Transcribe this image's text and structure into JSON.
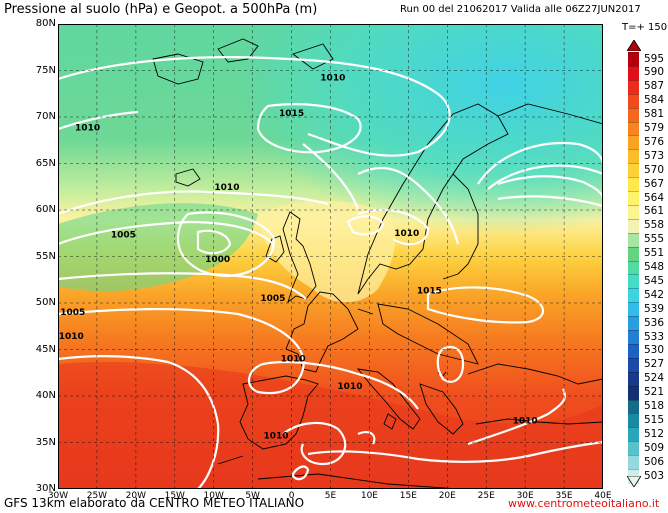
{
  "header": {
    "title": "Pressione al suolo (hPa) e Geopot. a 500hPa (m)",
    "run": "Run 00 del 21062017  Valida alle 06Z27JUN2017",
    "timestep": "T=+ 150"
  },
  "footer": {
    "source": "GFS 13km elaborato da CENTRO METEO ITALIANO",
    "website": "www.centrometeoitaliano.it"
  },
  "axes": {
    "lat_labels": [
      "80N",
      "75N",
      "70N",
      "65N",
      "60N",
      "55N",
      "50N",
      "45N",
      "40N",
      "35N",
      "30N"
    ],
    "lon_labels": [
      "30W",
      "25W",
      "20W",
      "15W",
      "10W",
      "5W",
      "0",
      "5E",
      "10E",
      "15E",
      "20E",
      "25E",
      "30E",
      "35E",
      "40E"
    ],
    "lat_range": [
      30,
      80
    ],
    "lon_range": [
      -30,
      40
    ]
  },
  "isobars": [
    {
      "label": "1010",
      "lon": 5.3,
      "lat": 74.2
    },
    {
      "label": "1010",
      "lon": -26.2,
      "lat": 68.8
    },
    {
      "label": "1015",
      "lon": 0,
      "lat": 70.4
    },
    {
      "label": "1010",
      "lon": -8.3,
      "lat": 62.4
    },
    {
      "label": "1005",
      "lon": -21.6,
      "lat": 57.3
    },
    {
      "label": "1000",
      "lon": -9.5,
      "lat": 54.7
    },
    {
      "label": "1010",
      "lon": 14.8,
      "lat": 57.5
    },
    {
      "label": "1005",
      "lon": -2.4,
      "lat": 50.5
    },
    {
      "label": "1005",
      "lon": -28.1,
      "lat": 49.0
    },
    {
      "label": "1015",
      "lon": 17.7,
      "lat": 51.3
    },
    {
      "label": "1010",
      "lon": -28.3,
      "lat": 46.4
    },
    {
      "label": "1010",
      "lon": 0.2,
      "lat": 44.0
    },
    {
      "label": "1010",
      "lon": 7.5,
      "lat": 41.0
    },
    {
      "label": "1010",
      "lon": -2.0,
      "lat": 35.7
    },
    {
      "label": "1010",
      "lon": 30.0,
      "lat": 37.3
    }
  ],
  "colorbar": {
    "levels": [
      "595",
      "590",
      "587",
      "584",
      "581",
      "579",
      "576",
      "573",
      "570",
      "567",
      "564",
      "561",
      "558",
      "555",
      "551",
      "548",
      "545",
      "542",
      "539",
      "536",
      "533",
      "530",
      "527",
      "524",
      "521",
      "518",
      "515",
      "512",
      "509",
      "506",
      "503"
    ],
    "colors": [
      "#b4000c",
      "#e0101a",
      "#ee2a1c",
      "#f24a1e",
      "#f5661e",
      "#f78420",
      "#f9a224",
      "#fbbd2c",
      "#fdd238",
      "#fee84c",
      "#fdf46a",
      "#fcf48e",
      "#f3f2b2",
      "#a6e6a0",
      "#62d482",
      "#52dca4",
      "#44dcc4",
      "#3cd4e0",
      "#32bce8",
      "#289ee0",
      "#2280d4",
      "#1c62c4",
      "#1c4aa8",
      "#183a8c",
      "#143070",
      "#166a8a",
      "#1a8aa4",
      "#28a6bc",
      "#58c2cc",
      "#92dadc",
      "#cceee6"
    ]
  },
  "colors": {
    "sea_green": "#64d894",
    "cyan": "#46dcc8",
    "light_yellow": "#fdf7a8",
    "orange": "#fb9a2a",
    "red": "#ee3020",
    "isobar": "#ffffff",
    "coast": "#000000",
    "footer_link": "#e01010"
  },
  "icons": [
    "arrow-up-triangle",
    "arrow-down-triangle"
  ]
}
